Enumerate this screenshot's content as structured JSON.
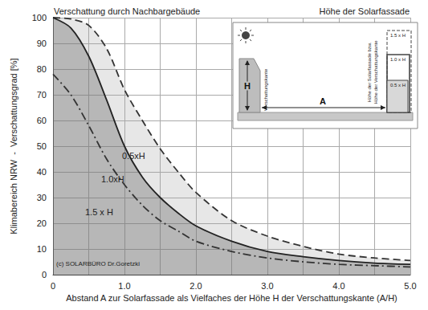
{
  "chart_data": {
    "type": "line",
    "title": "Verschattung durch Nachbargebäude",
    "subtitle": "Höhe der Solarfassade",
    "x_label": "Abstand A zur Solarfassade als Vielfaches der Höhe H der Verschattungskante (A/H)",
    "y_label": "Klimabereich NRW  -  Verschattungsgrad [%]",
    "x": [
      0,
      0.25,
      0.5,
      0.75,
      1,
      1.25,
      1.5,
      1.75,
      2,
      2.5,
      3,
      3.5,
      4,
      4.5,
      5
    ],
    "series": [
      {
        "name": "0.5xH",
        "color": "#333333",
        "line_style": "dashed",
        "values": [
          100,
          99.5,
          97,
          88,
          72,
          60,
          49,
          40,
          32,
          21,
          15,
          11,
          8,
          6.5,
          5.5
        ]
      },
      {
        "name": "1.0xH",
        "color": "#222222",
        "line_style": "solid",
        "values": [
          100,
          96,
          85,
          68,
          50,
          38,
          30,
          24,
          19,
          13,
          9,
          7,
          5.5,
          4.5,
          4
        ]
      },
      {
        "name": "1.5 x H",
        "color": "#333333",
        "line_style": "dashdot",
        "values": [
          78,
          70,
          58,
          45,
          35,
          27,
          21,
          17,
          13,
          9,
          6.5,
          5,
          4,
          3.5,
          3
        ]
      }
    ],
    "xlim": [
      0,
      5
    ],
    "xticks": [
      0,
      {
        "value": 1,
        "label": "1.0"
      },
      {
        "value": 2,
        "label": "2.0"
      },
      {
        "value": 3,
        "label": "3.0"
      },
      {
        "value": 4,
        "label": "4.0"
      },
      {
        "value": 5,
        "label": "5.0"
      }
    ],
    "ylim": [
      0,
      100
    ],
    "yticks": [
      0,
      10,
      20,
      30,
      40,
      50,
      60,
      70,
      80,
      90,
      100
    ],
    "grid": true,
    "annotations": [
      "(c) SOLARBÜRO Dr.Goretzki"
    ],
    "inset": {
      "height": "H",
      "distance": "A",
      "edge": "Verschattungskante",
      "facade": [
        "Höhe der Solarfassade bzw.",
        "Höhe der Verschattungskante"
      ],
      "levels": [
        "1.5 x H",
        "1.0 x H",
        "0.5 x H"
      ]
    }
  }
}
